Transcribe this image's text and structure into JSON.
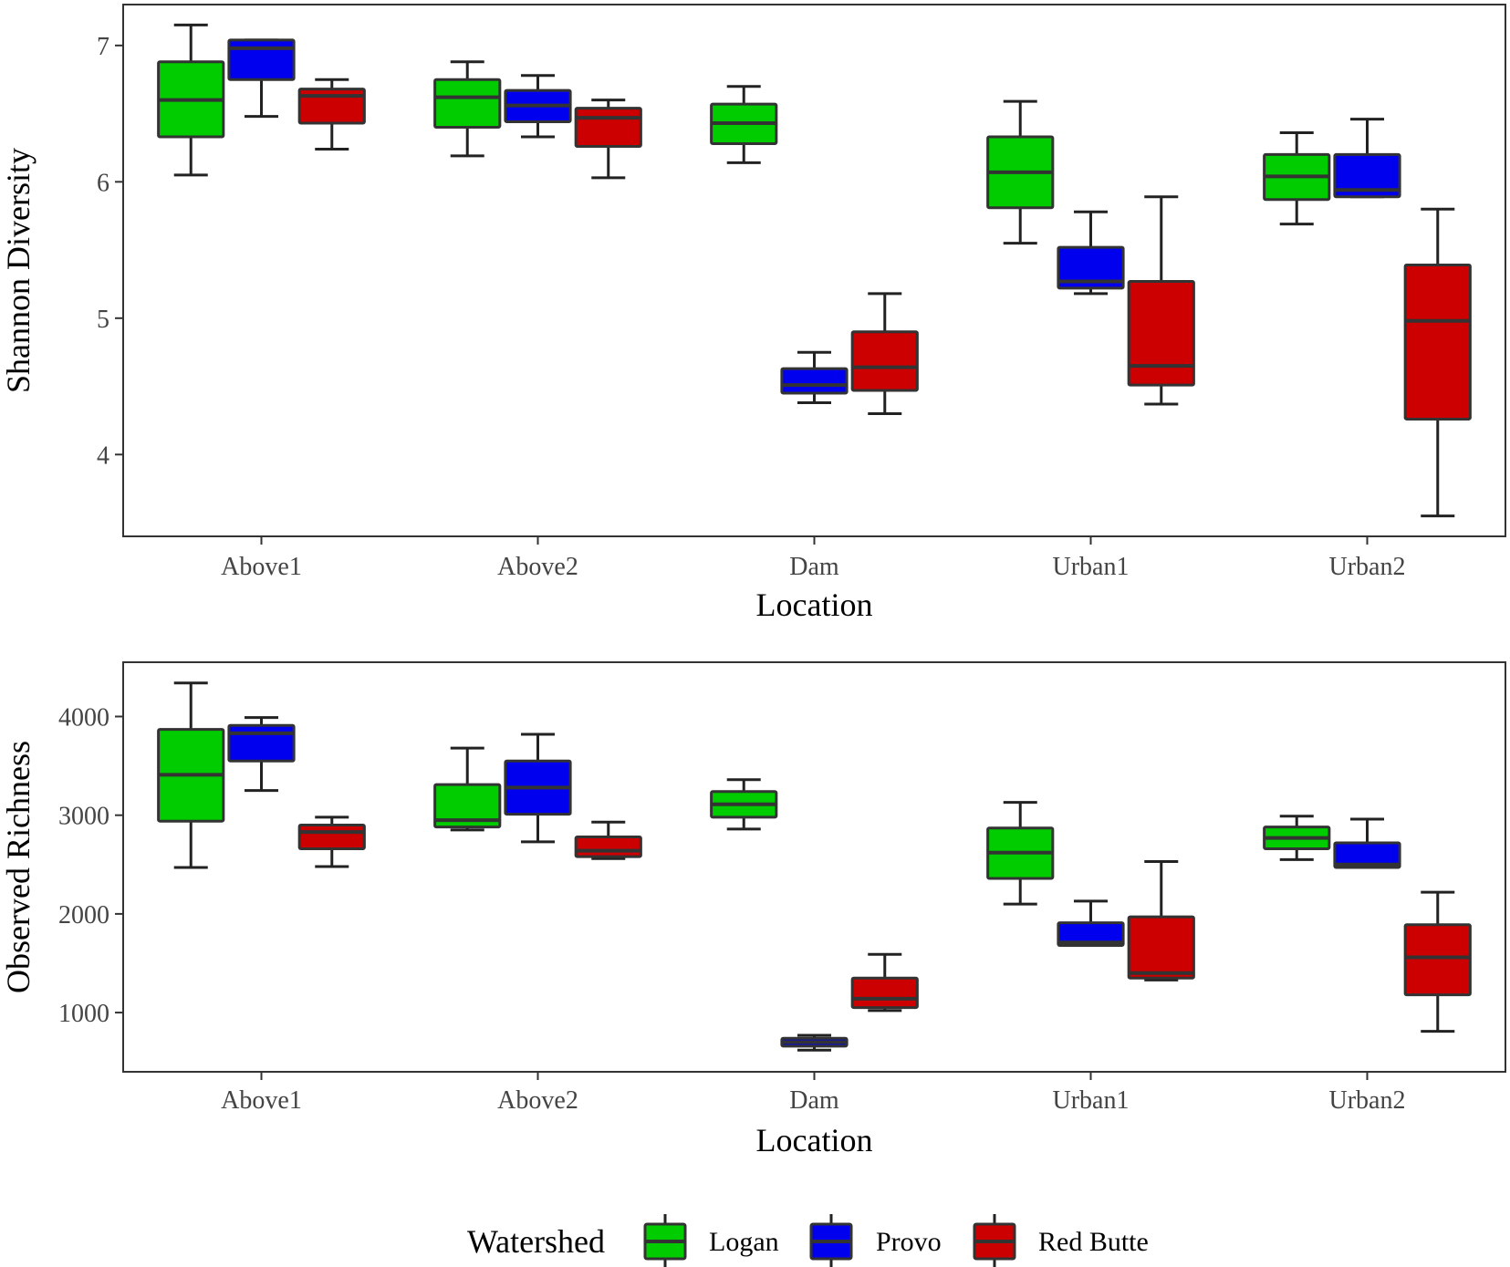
{
  "chart_data": [
    {
      "type": "boxplot",
      "xlabel": "Location",
      "ylabel": "Shannon Diversity",
      "categories": [
        "Above1",
        "Above2",
        "Dam",
        "Urban1",
        "Urban2"
      ],
      "ylim": [
        3.4,
        7.3
      ],
      "yticks": [
        4,
        5,
        6,
        7
      ],
      "ytick_labels": [
        "4",
        "5",
        "6",
        "7"
      ],
      "grid": false,
      "series": [
        {
          "name": "Logan",
          "boxes": [
            {
              "category": "Above1",
              "min": 6.05,
              "q1": 6.33,
              "median": 6.6,
              "q3": 6.88,
              "max": 7.15
            },
            {
              "category": "Above2",
              "min": 6.19,
              "q1": 6.4,
              "median": 6.62,
              "q3": 6.75,
              "max": 6.88
            },
            {
              "category": "Dam",
              "min": 6.14,
              "q1": 6.28,
              "median": 6.43,
              "q3": 6.57,
              "max": 6.7
            },
            {
              "category": "Urban1",
              "min": 5.55,
              "q1": 5.81,
              "median": 6.07,
              "q3": 6.33,
              "max": 6.59
            },
            {
              "category": "Urban2",
              "min": 5.69,
              "q1": 5.87,
              "median": 6.04,
              "q3": 6.2,
              "max": 6.36
            }
          ]
        },
        {
          "name": "Provo",
          "boxes": [
            {
              "category": "Above1",
              "min": 6.48,
              "q1": 6.75,
              "median": 6.98,
              "q3": 7.04,
              "max": 7.04
            },
            {
              "category": "Above2",
              "min": 6.33,
              "q1": 6.44,
              "median": 6.56,
              "q3": 6.67,
              "max": 6.78
            },
            {
              "category": "Dam",
              "min": 4.38,
              "q1": 4.45,
              "median": 4.51,
              "q3": 4.63,
              "max": 4.75
            },
            {
              "category": "Urban1",
              "min": 5.18,
              "q1": 5.22,
              "median": 5.27,
              "q3": 5.52,
              "max": 5.78
            },
            {
              "category": "Urban2",
              "min": 5.89,
              "q1": 5.89,
              "median": 5.94,
              "q3": 6.2,
              "max": 6.46
            }
          ]
        },
        {
          "name": "Red Butte",
          "boxes": [
            {
              "category": "Above1",
              "min": 6.24,
              "q1": 6.43,
              "median": 6.63,
              "q3": 6.68,
              "max": 6.75
            },
            {
              "category": "Above2",
              "min": 6.03,
              "q1": 6.26,
              "median": 6.47,
              "q3": 6.54,
              "max": 6.6
            },
            {
              "category": "Dam",
              "min": 4.3,
              "q1": 4.47,
              "median": 4.64,
              "q3": 4.9,
              "max": 5.18
            },
            {
              "category": "Urban1",
              "min": 4.37,
              "q1": 4.51,
              "median": 4.65,
              "q3": 5.27,
              "max": 5.89
            },
            {
              "category": "Urban2",
              "min": 3.55,
              "q1": 4.26,
              "median": 4.98,
              "q3": 5.39,
              "max": 5.8
            }
          ]
        }
      ]
    },
    {
      "type": "boxplot",
      "xlabel": "Location",
      "ylabel": "Observed Richness",
      "categories": [
        "Above1",
        "Above2",
        "Dam",
        "Urban1",
        "Urban2"
      ],
      "ylim": [
        400,
        4550
      ],
      "yticks": [
        1000,
        2000,
        3000,
        4000
      ],
      "ytick_labels": [
        "1000",
        "2000",
        "3000",
        "4000"
      ],
      "grid": false,
      "series": [
        {
          "name": "Logan",
          "boxes": [
            {
              "category": "Above1",
              "min": 2470,
              "q1": 2940,
              "median": 3410,
              "q3": 3870,
              "max": 4340
            },
            {
              "category": "Above2",
              "min": 2850,
              "q1": 2880,
              "median": 2950,
              "q3": 3310,
              "max": 3680
            },
            {
              "category": "Dam",
              "min": 2860,
              "q1": 2980,
              "median": 3110,
              "q3": 3240,
              "max": 3360
            },
            {
              "category": "Urban1",
              "min": 2100,
              "q1": 2360,
              "median": 2620,
              "q3": 2870,
              "max": 3130
            },
            {
              "category": "Urban2",
              "min": 2550,
              "q1": 2660,
              "median": 2770,
              "q3": 2880,
              "max": 2990
            }
          ]
        },
        {
          "name": "Provo",
          "boxes": [
            {
              "category": "Above1",
              "min": 3250,
              "q1": 3550,
              "median": 3830,
              "q3": 3910,
              "max": 3990
            },
            {
              "category": "Above2",
              "min": 2730,
              "q1": 3010,
              "median": 3280,
              "q3": 3550,
              "max": 3820
            },
            {
              "category": "Dam",
              "min": 620,
              "q1": 660,
              "median": 700,
              "q3": 740,
              "max": 770
            },
            {
              "category": "Urban1",
              "min": 1680,
              "q1": 1680,
              "median": 1710,
              "q3": 1910,
              "max": 2130
            },
            {
              "category": "Urban2",
              "min": 2470,
              "q1": 2470,
              "median": 2500,
              "q3": 2720,
              "max": 2960
            }
          ]
        },
        {
          "name": "Red Butte",
          "boxes": [
            {
              "category": "Above1",
              "min": 2480,
              "q1": 2660,
              "median": 2830,
              "q3": 2900,
              "max": 2980
            },
            {
              "category": "Above2",
              "min": 2560,
              "q1": 2580,
              "median": 2640,
              "q3": 2780,
              "max": 2930
            },
            {
              "category": "Dam",
              "min": 1020,
              "q1": 1050,
              "median": 1140,
              "q3": 1350,
              "max": 1590
            },
            {
              "category": "Urban1",
              "min": 1330,
              "q1": 1350,
              "median": 1400,
              "q3": 1970,
              "max": 2530
            },
            {
              "category": "Urban2",
              "min": 810,
              "q1": 1180,
              "median": 1560,
              "q3": 1890,
              "max": 2220
            }
          ]
        }
      ]
    }
  ],
  "legend": {
    "title": "Watershed",
    "items": [
      {
        "label": "Logan",
        "color": "#00cc00"
      },
      {
        "label": "Provo",
        "color": "#0000ee"
      },
      {
        "label": "Red Butte",
        "color": "#cc0000"
      }
    ]
  },
  "style": {
    "box_border": "#333333",
    "whisker": "#222222",
    "panel_border": "#333333"
  }
}
